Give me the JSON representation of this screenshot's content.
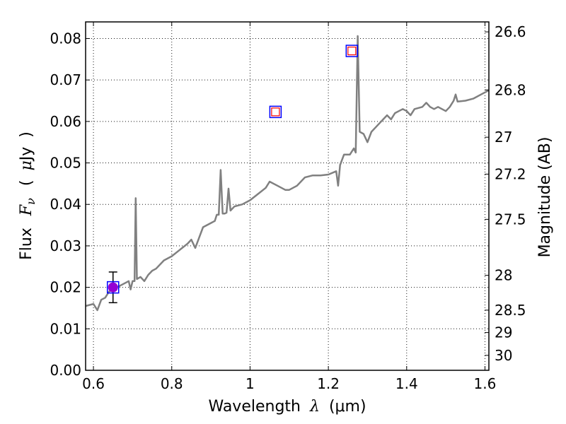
{
  "chart_data": {
    "type": "line",
    "xlabel": "Wavelength",
    "xlabel_symbol": "λ",
    "xlabel_unit": "(μm)",
    "ylabel": "Flux",
    "ylabel_symbol": "F",
    "ylabel_symbol_sub": "ν",
    "ylabel_unit_open": "(",
    "ylabel_unit_mu": "μ",
    "ylabel_unit": "Jy",
    "ylabel_unit_close": ")",
    "y2label": "Magnitude (AB)",
    "xlim": [
      0.58,
      1.61
    ],
    "ylim": [
      0.0,
      0.084
    ],
    "grid": true,
    "xticks": [
      0.6,
      0.8,
      1.0,
      1.2,
      1.4,
      1.6
    ],
    "xtick_labels": [
      "0.6",
      "0.8",
      "1",
      "1.2",
      "1.4",
      "1.6"
    ],
    "yticks": [
      0.0,
      0.01,
      0.02,
      0.03,
      0.04,
      0.05,
      0.06,
      0.07,
      0.08
    ],
    "ytick_labels": [
      "0.00",
      "0.01",
      "0.02",
      "0.03",
      "0.04",
      "0.05",
      "0.06",
      "0.07",
      "0.08"
    ],
    "y2ticks": [
      {
        "flux": 0.0816,
        "label": "26.6"
      },
      {
        "flux": 0.0676,
        "label": "26.8"
      },
      {
        "flux": 0.0562,
        "label": "27"
      },
      {
        "flux": 0.0473,
        "label": "27.2"
      },
      {
        "flux": 0.0364,
        "label": "27.5"
      },
      {
        "flux": 0.0229,
        "label": "28"
      },
      {
        "flux": 0.0145,
        "label": "28.5"
      },
      {
        "flux": 0.0091,
        "label": "29"
      },
      {
        "flux": 0.0036,
        "label": "30"
      }
    ],
    "series": [
      {
        "kind": "spectrum",
        "color": "#808080",
        "points": [
          [
            0.58,
            0.0155
          ],
          [
            0.6,
            0.016
          ],
          [
            0.61,
            0.0145
          ],
          [
            0.62,
            0.017
          ],
          [
            0.63,
            0.0175
          ],
          [
            0.64,
            0.019
          ],
          [
            0.65,
            0.0195
          ],
          [
            0.66,
            0.02
          ],
          [
            0.67,
            0.0205
          ],
          [
            0.68,
            0.021
          ],
          [
            0.69,
            0.0215
          ],
          [
            0.695,
            0.0195
          ],
          [
            0.7,
            0.0215
          ],
          [
            0.705,
            0.0215
          ],
          [
            0.708,
            0.0415
          ],
          [
            0.711,
            0.022
          ],
          [
            0.72,
            0.0225
          ],
          [
            0.73,
            0.0215
          ],
          [
            0.74,
            0.023
          ],
          [
            0.75,
            0.024
          ],
          [
            0.76,
            0.0245
          ],
          [
            0.78,
            0.0265
          ],
          [
            0.8,
            0.0275
          ],
          [
            0.82,
            0.029
          ],
          [
            0.84,
            0.0305
          ],
          [
            0.85,
            0.0315
          ],
          [
            0.86,
            0.0295
          ],
          [
            0.87,
            0.032
          ],
          [
            0.88,
            0.0345
          ],
          [
            0.9,
            0.0355
          ],
          [
            0.91,
            0.036
          ],
          [
            0.915,
            0.0375
          ],
          [
            0.92,
            0.0375
          ],
          [
            0.925,
            0.0483
          ],
          [
            0.93,
            0.0378
          ],
          [
            0.935,
            0.0378
          ],
          [
            0.94,
            0.038
          ],
          [
            0.945,
            0.0438
          ],
          [
            0.95,
            0.0385
          ],
          [
            0.96,
            0.0395
          ],
          [
            0.98,
            0.04
          ],
          [
            1.0,
            0.041
          ],
          [
            1.02,
            0.0425
          ],
          [
            1.04,
            0.044
          ],
          [
            1.05,
            0.0455
          ],
          [
            1.07,
            0.0445
          ],
          [
            1.09,
            0.0435
          ],
          [
            1.1,
            0.0435
          ],
          [
            1.12,
            0.0445
          ],
          [
            1.14,
            0.0465
          ],
          [
            1.16,
            0.047
          ],
          [
            1.18,
            0.047
          ],
          [
            1.2,
            0.0472
          ],
          [
            1.22,
            0.048
          ],
          [
            1.225,
            0.0445
          ],
          [
            1.23,
            0.0495
          ],
          [
            1.24,
            0.052
          ],
          [
            1.255,
            0.052
          ],
          [
            1.265,
            0.0535
          ],
          [
            1.27,
            0.0525
          ],
          [
            1.275,
            0.0806
          ],
          [
            1.28,
            0.0575
          ],
          [
            1.29,
            0.057
          ],
          [
            1.3,
            0.055
          ],
          [
            1.31,
            0.0575
          ],
          [
            1.32,
            0.0585
          ],
          [
            1.33,
            0.0595
          ],
          [
            1.34,
            0.0605
          ],
          [
            1.35,
            0.0615
          ],
          [
            1.36,
            0.0605
          ],
          [
            1.37,
            0.062
          ],
          [
            1.38,
            0.0625
          ],
          [
            1.39,
            0.063
          ],
          [
            1.4,
            0.0625
          ],
          [
            1.41,
            0.0615
          ],
          [
            1.42,
            0.063
          ],
          [
            1.44,
            0.0635
          ],
          [
            1.45,
            0.0645
          ],
          [
            1.46,
            0.0635
          ],
          [
            1.47,
            0.063
          ],
          [
            1.48,
            0.0635
          ],
          [
            1.5,
            0.0625
          ],
          [
            1.51,
            0.0635
          ],
          [
            1.52,
            0.065
          ],
          [
            1.525,
            0.0665
          ],
          [
            1.53,
            0.0648
          ],
          [
            1.55,
            0.065
          ],
          [
            1.57,
            0.0655
          ],
          [
            1.59,
            0.0665
          ],
          [
            1.61,
            0.0675
          ]
        ]
      }
    ],
    "photometry": [
      {
        "x": 0.65,
        "y": 0.02,
        "yerr": 0.0037,
        "box_color": "#0000ff",
        "marker": "circle",
        "marker_color": "#9400d3"
      },
      {
        "x": 1.065,
        "y": 0.0623,
        "box_color": "#0000ff",
        "marker": "square",
        "marker_color": "#ff0000"
      },
      {
        "x": 1.26,
        "y": 0.077,
        "box_color": "#0000ff",
        "marker": "square",
        "marker_color": "#ff0000"
      }
    ]
  }
}
